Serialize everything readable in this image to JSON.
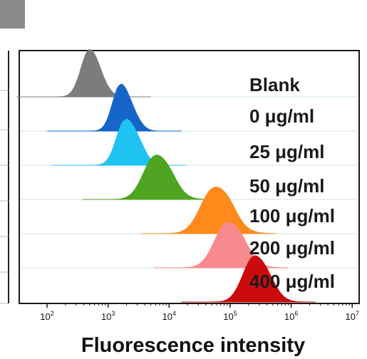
{
  "chart_data": {
    "type": "area",
    "title": "",
    "xlabel": "Fluorescence intensity",
    "ylabel": "",
    "x_scale": "log",
    "xlim": [
      35,
      13000000
    ],
    "x_ticks": [
      {
        "value": 100,
        "base": "10",
        "exp": "2"
      },
      {
        "value": 1000,
        "base": "10",
        "exp": "3"
      },
      {
        "value": 10000,
        "base": "10",
        "exp": "4"
      },
      {
        "value": 100000,
        "base": "10",
        "exp": "5"
      },
      {
        "value": 1000000,
        "base": "10",
        "exp": "6"
      },
      {
        "value": 10000000,
        "base": "10",
        "exp": "7"
      }
    ],
    "grid": false,
    "legend": "right",
    "series": [
      {
        "name": "Blank",
        "color": "#7c7c7c",
        "peak": 500,
        "width": 0.13,
        "height": 0.95,
        "tail": 0.0
      },
      {
        "name": "0 μg/ml",
        "color": "#1665c8",
        "peak": 1600,
        "width": 0.12,
        "height": 0.93,
        "tail": 0.1
      },
      {
        "name": "25 μg/ml",
        "color": "#1ec3f2",
        "peak": 1900,
        "width": 0.13,
        "height": 0.9,
        "tail": 0.18
      },
      {
        "name": "50 μg/ml",
        "color": "#4fa521",
        "peak": 6000,
        "width": 0.18,
        "height": 0.88,
        "tail": 0.08
      },
      {
        "name": "100 μg/ml",
        "color": "#ff8a1c",
        "peak": 55000,
        "width": 0.2,
        "height": 0.92,
        "tail": 0.1
      },
      {
        "name": "200 μg/ml",
        "color": "#f78a8f",
        "peak": 90000,
        "width": 0.19,
        "height": 0.9,
        "tail": 0.08
      },
      {
        "name": "400 μg/ml",
        "color": "#cc0c0c",
        "peak": 250000,
        "width": 0.17,
        "height": 0.92,
        "tail": 0.06
      }
    ]
  }
}
